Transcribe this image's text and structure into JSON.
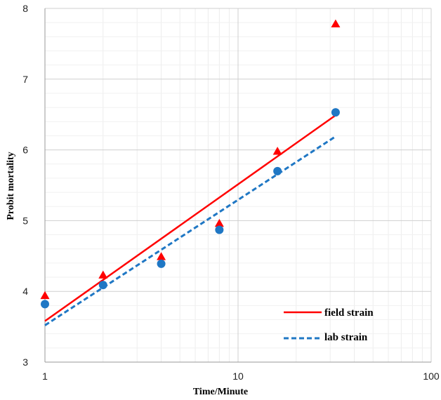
{
  "chart_data": {
    "type": "scatter",
    "x_scale": "log",
    "xlim": [
      1,
      100
    ],
    "ylim": [
      3,
      8
    ],
    "xlabel": "Time/Minute",
    "ylabel": "Probit mortality",
    "x_ticks": [
      "1",
      "10",
      "100"
    ],
    "y_ticks": [
      "3",
      "4",
      "5",
      "6",
      "7",
      "8"
    ],
    "grid": "on (major and minor, light gray)",
    "legend_position": "bottom-right",
    "series": [
      {
        "name": "field strain",
        "color": "#ff0000",
        "marker": "triangle",
        "line_style": "solid",
        "x": [
          1,
          2,
          4,
          8,
          16,
          32
        ],
        "y": [
          3.94,
          4.23,
          4.49,
          4.96,
          5.98,
          7.78
        ],
        "fit_line": {
          "x": [
            1,
            32
          ],
          "y": [
            3.58,
            6.49
          ]
        }
      },
      {
        "name": "lab strain",
        "color": "#1f77c4",
        "marker": "circle",
        "line_style": "dashed",
        "x": [
          1,
          2,
          4,
          8,
          16,
          32
        ],
        "y": [
          3.82,
          4.09,
          4.39,
          4.87,
          5.7,
          6.53
        ],
        "fit_line": {
          "x": [
            1,
            32
          ],
          "y": [
            3.52,
            6.19
          ]
        }
      }
    ]
  }
}
